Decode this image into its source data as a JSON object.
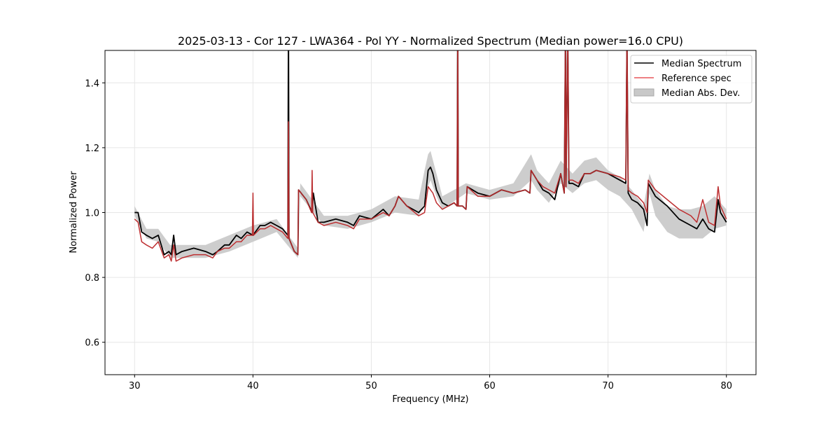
{
  "chart_data": {
    "type": "line",
    "title": "2025-03-13 - Cor 127 - LWA364 - Pol YY - Normalized Spectrum (Median power=16.0 CPU)",
    "xlabel": "Frequency (MHz)",
    "ylabel": "Normalized Power",
    "xlim": [
      27.5,
      82.5
    ],
    "ylim": [
      0.5,
      1.5
    ],
    "xticks": [
      30,
      40,
      50,
      60,
      70,
      80
    ],
    "yticks": [
      0.6,
      0.8,
      1.0,
      1.2,
      1.4
    ],
    "xtick_labels": [
      "30",
      "40",
      "50",
      "60",
      "70",
      "80"
    ],
    "ytick_labels": [
      "0.6",
      "0.8",
      "1.0",
      "1.2",
      "1.4"
    ],
    "grid": true,
    "legend_position": "top-right",
    "legend": [
      {
        "label": "Median Spectrum",
        "kind": "line",
        "color": "#000000"
      },
      {
        "label": "Reference spec",
        "kind": "line",
        "color": "#e8565a"
      },
      {
        "label": "Median Abs. Dev.",
        "kind": "band",
        "color": "#c8c8c8"
      }
    ],
    "series": [
      {
        "name": "Median Spectrum",
        "color": "#000000",
        "x": [
          30.0,
          30.3,
          30.6,
          31.0,
          31.5,
          32.0,
          32.5,
          32.9,
          33.1,
          33.3,
          33.5,
          34.0,
          35.0,
          36.0,
          36.6,
          37.0,
          37.6,
          38.0,
          38.6,
          39.0,
          39.5,
          40.0,
          40.6,
          41.0,
          41.5,
          42.0,
          42.5,
          42.95,
          43.0,
          43.05,
          43.5,
          43.8,
          43.85,
          44.5,
          45.0,
          45.1,
          45.5,
          46.0,
          47.0,
          48.0,
          48.5,
          49.0,
          50.0,
          51.0,
          51.5,
          52.0,
          52.3,
          53.0,
          54.0,
          54.5,
          54.8,
          55.0,
          55.2,
          55.5,
          56.0,
          56.5,
          57.0,
          57.25,
          57.3,
          57.35,
          57.7,
          58.0,
          58.1,
          59.0,
          60.0,
          61.0,
          62.0,
          63.0,
          63.4,
          63.5,
          64.0,
          64.5,
          65.0,
          65.5,
          66.0,
          66.3,
          66.4,
          66.45,
          66.6,
          66.7,
          67.0,
          67.5,
          68.0,
          68.5,
          69.0,
          70.0,
          71.0,
          71.5,
          71.6,
          71.7,
          72.0,
          72.5,
          73.0,
          73.3,
          73.4,
          74.0,
          75.0,
          76.0,
          77.0,
          77.5,
          78.0,
          78.5,
          79.0,
          79.3,
          79.5,
          80.0
        ],
        "values": [
          1.0,
          1.0,
          0.94,
          0.93,
          0.92,
          0.93,
          0.87,
          0.88,
          0.87,
          0.93,
          0.87,
          0.88,
          0.89,
          0.88,
          0.87,
          0.88,
          0.9,
          0.9,
          0.93,
          0.92,
          0.94,
          0.93,
          0.96,
          0.96,
          0.97,
          0.96,
          0.95,
          0.93,
          1.62,
          0.92,
          0.88,
          0.87,
          1.07,
          1.04,
          1.0,
          1.06,
          0.97,
          0.97,
          0.98,
          0.97,
          0.96,
          0.99,
          0.98,
          1.01,
          0.99,
          1.02,
          1.05,
          1.02,
          1.0,
          1.02,
          1.13,
          1.14,
          1.12,
          1.07,
          1.03,
          1.02,
          1.03,
          1.02,
          1.63,
          1.02,
          1.02,
          1.01,
          1.08,
          1.06,
          1.05,
          1.07,
          1.06,
          1.07,
          1.06,
          1.13,
          1.1,
          1.07,
          1.06,
          1.04,
          1.12,
          1.06,
          1.55,
          1.08,
          1.55,
          1.09,
          1.09,
          1.08,
          1.12,
          1.12,
          1.13,
          1.12,
          1.1,
          1.09,
          1.55,
          1.06,
          1.04,
          1.03,
          1.01,
          0.96,
          1.09,
          1.05,
          1.02,
          0.98,
          0.96,
          0.95,
          0.98,
          0.95,
          0.94,
          1.04,
          1.0,
          0.97
        ]
      },
      {
        "name": "Reference spec",
        "color": "#e8565a",
        "x": [
          30.0,
          30.3,
          30.6,
          31.0,
          31.5,
          32.0,
          32.5,
          32.9,
          33.1,
          33.3,
          33.5,
          34.0,
          35.0,
          36.0,
          36.6,
          37.0,
          37.6,
          38.0,
          38.6,
          39.0,
          39.5,
          39.95,
          40.0,
          40.05,
          40.6,
          41.0,
          41.5,
          42.0,
          42.5,
          42.95,
          43.0,
          43.05,
          43.5,
          43.8,
          43.85,
          44.5,
          44.95,
          45.0,
          45.05,
          45.5,
          46.0,
          47.0,
          48.0,
          48.5,
          49.0,
          50.0,
          51.0,
          51.5,
          52.0,
          52.3,
          53.0,
          54.0,
          54.5,
          54.8,
          55.0,
          55.2,
          55.5,
          56.0,
          56.5,
          57.0,
          57.25,
          57.3,
          57.35,
          57.7,
          58.0,
          58.1,
          59.0,
          60.0,
          61.0,
          62.0,
          63.0,
          63.4,
          63.5,
          64.0,
          64.5,
          65.0,
          65.5,
          66.0,
          66.3,
          66.4,
          66.45,
          66.6,
          66.7,
          67.0,
          67.5,
          68.0,
          68.5,
          69.0,
          70.0,
          71.0,
          71.5,
          71.6,
          71.7,
          72.0,
          72.5,
          73.0,
          73.3,
          73.4,
          74.0,
          75.0,
          76.0,
          77.0,
          77.5,
          78.0,
          78.5,
          79.0,
          79.3,
          79.5,
          80.0
        ],
        "values": [
          0.98,
          0.97,
          0.91,
          0.9,
          0.89,
          0.91,
          0.86,
          0.87,
          0.85,
          0.9,
          0.85,
          0.86,
          0.87,
          0.87,
          0.86,
          0.88,
          0.89,
          0.89,
          0.91,
          0.91,
          0.93,
          0.93,
          1.06,
          0.93,
          0.95,
          0.95,
          0.96,
          0.95,
          0.94,
          0.92,
          1.28,
          0.92,
          0.88,
          0.87,
          1.07,
          1.04,
          1.0,
          1.13,
          1.0,
          0.97,
          0.96,
          0.97,
          0.96,
          0.95,
          0.98,
          0.98,
          1.0,
          0.99,
          1.02,
          1.05,
          1.02,
          0.99,
          1.0,
          1.08,
          1.07,
          1.06,
          1.03,
          1.01,
          1.02,
          1.03,
          1.02,
          1.55,
          1.02,
          1.02,
          1.01,
          1.08,
          1.05,
          1.05,
          1.07,
          1.06,
          1.07,
          1.06,
          1.13,
          1.1,
          1.08,
          1.07,
          1.06,
          1.12,
          1.06,
          1.55,
          1.08,
          1.55,
          1.1,
          1.1,
          1.09,
          1.12,
          1.12,
          1.13,
          1.12,
          1.11,
          1.1,
          1.55,
          1.07,
          1.06,
          1.05,
          1.03,
          1.0,
          1.1,
          1.07,
          1.04,
          1.01,
          0.99,
          0.97,
          1.04,
          0.97,
          0.96,
          1.08,
          1.02,
          0.98
        ]
      }
    ],
    "mad_band": {
      "name": "Median Abs. Dev.",
      "color": "#c8c8c8",
      "x": [
        30.0,
        31.0,
        32.0,
        33.0,
        34.0,
        36.0,
        38.0,
        40.0,
        42.0,
        43.8,
        44.0,
        46.0,
        48.0,
        50.0,
        52.0,
        54.0,
        54.5,
        54.8,
        55.0,
        55.5,
        56.0,
        58.0,
        60.0,
        62.0,
        63.5,
        64.0,
        65.0,
        66.0,
        67.0,
        68.0,
        69.0,
        70.0,
        71.0,
        72.0,
        73.0,
        73.5,
        74.0,
        75.0,
        76.0,
        77.0,
        78.0,
        79.0,
        80.0
      ],
      "lower": [
        0.99,
        0.92,
        0.91,
        0.86,
        0.86,
        0.86,
        0.88,
        0.91,
        0.94,
        0.86,
        1.05,
        0.96,
        0.95,
        0.97,
        1.0,
        0.99,
        1.03,
        1.08,
        1.1,
        1.05,
        1.01,
        1.06,
        1.04,
        1.05,
        1.1,
        1.07,
        1.03,
        1.09,
        1.06,
        1.09,
        1.1,
        1.07,
        1.05,
        1.01,
        0.94,
        1.06,
        0.99,
        0.94,
        0.92,
        0.92,
        0.92,
        0.95,
        0.96
      ],
      "upper": [
        1.02,
        0.95,
        0.95,
        0.9,
        0.9,
        0.9,
        0.93,
        0.96,
        0.98,
        0.89,
        1.09,
        0.99,
        0.99,
        1.01,
        1.05,
        1.04,
        1.13,
        1.18,
        1.19,
        1.12,
        1.05,
        1.09,
        1.07,
        1.09,
        1.18,
        1.13,
        1.09,
        1.16,
        1.12,
        1.16,
        1.17,
        1.13,
        1.11,
        1.07,
        1.02,
        1.12,
        1.07,
        1.02,
        1.01,
        1.01,
        1.02,
        1.05,
        1.01
      ]
    }
  }
}
